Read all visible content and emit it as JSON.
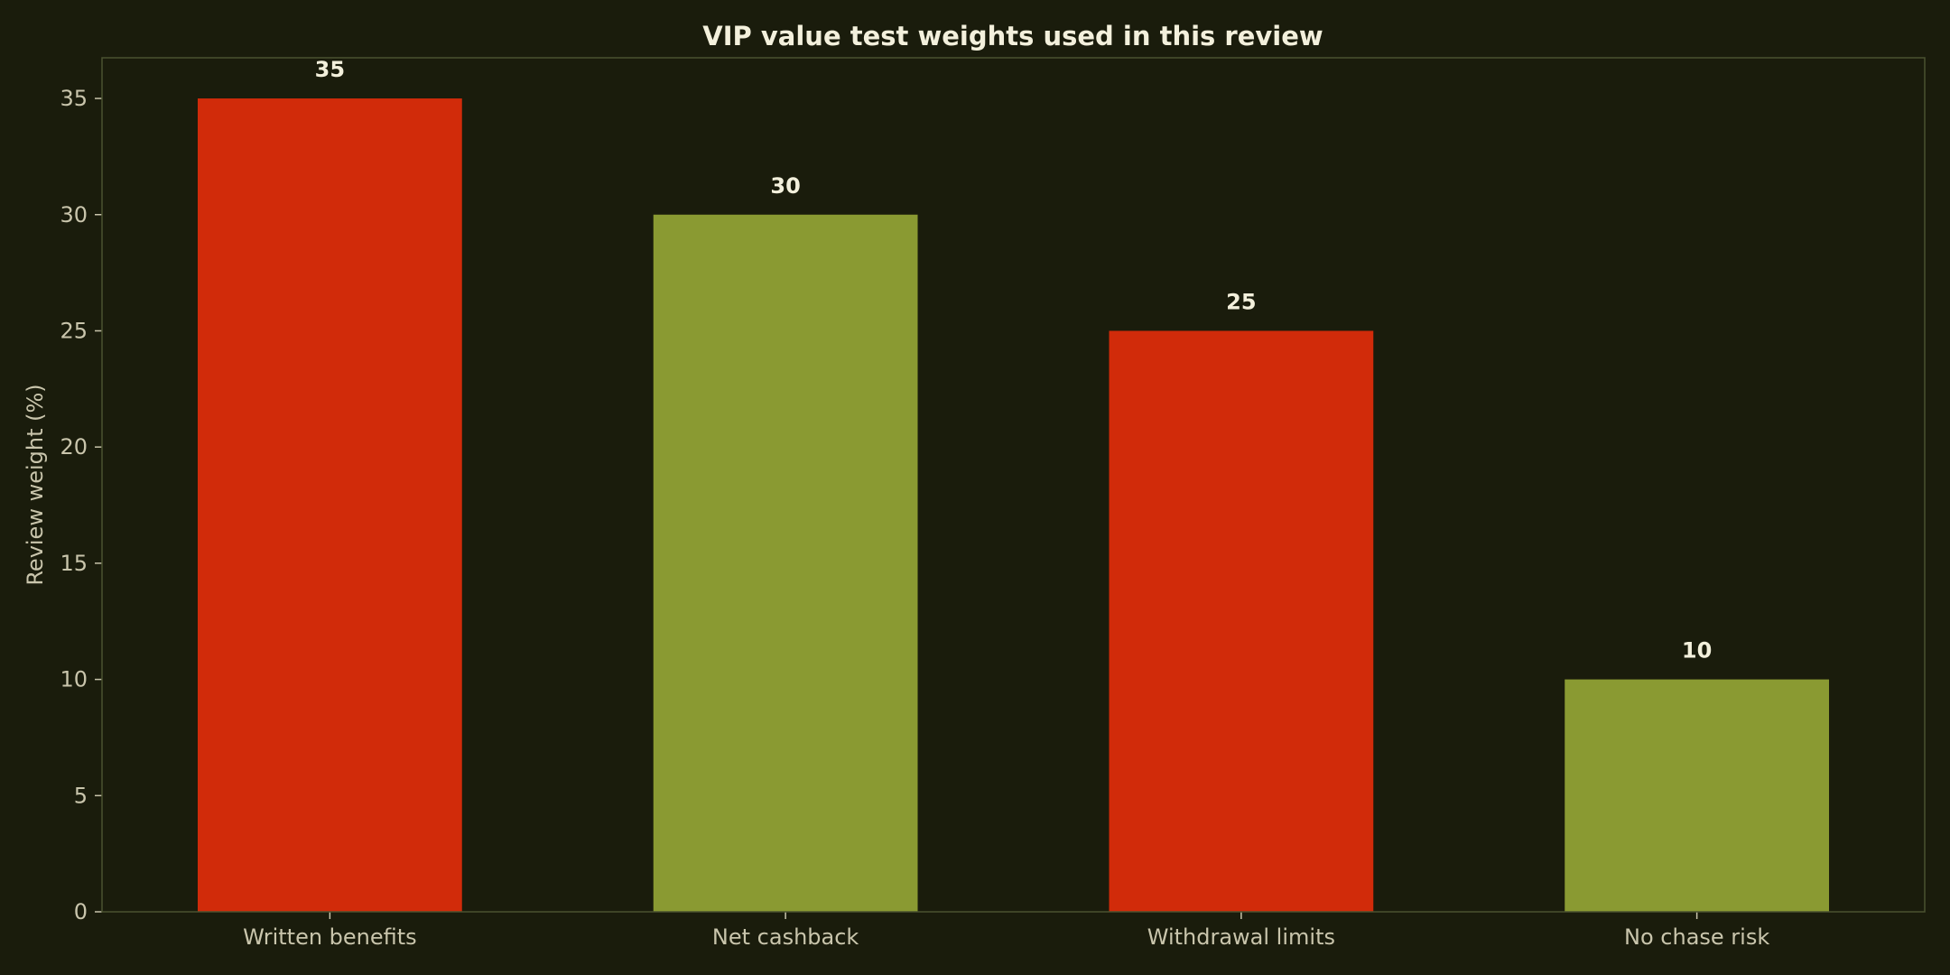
{
  "chart_data": {
    "type": "bar",
    "title": "VIP value test weights used in this review",
    "xlabel": "",
    "ylabel": "Review weight (%)",
    "categories": [
      "Written benefits",
      "Net cashback",
      "Withdrawal limits",
      "No chase risk"
    ],
    "values": [
      35,
      30,
      25,
      10
    ],
    "data_labels": [
      "35",
      "30",
      "25",
      "10"
    ],
    "bar_colors": [
      "#d12b0a",
      "#8a9a32",
      "#d12b0a",
      "#8a9a32"
    ],
    "ylim": [
      0,
      36.75
    ],
    "yticks": [
      0,
      5,
      10,
      15,
      20,
      25,
      30,
      35
    ],
    "grid": false,
    "legend": "none"
  },
  "colors": {
    "background": "#1a1c0c",
    "frame": "#4a5230",
    "text": "#c9c5ac",
    "title": "#f3f0dc"
  }
}
